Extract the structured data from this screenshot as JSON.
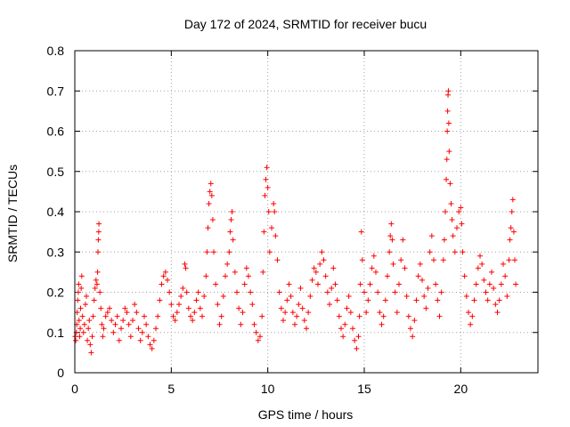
{
  "chart_data": {
    "type": "scatter",
    "title": "Day 172 of 2024, SRMTID for receiver bucu",
    "xlabel": "GPS time / hours",
    "ylabel": "SRMTID / TECUs",
    "xlim": [
      0,
      24
    ],
    "ylim": [
      0,
      0.8
    ],
    "xticks": [
      0,
      5,
      10,
      15,
      20
    ],
    "xtick_labels": [
      "0",
      "5",
      "10",
      "15",
      "20"
    ],
    "yticks": [
      0,
      0.1,
      0.2,
      0.3,
      0.4,
      0.5,
      0.6,
      0.7,
      0.8
    ],
    "ytick_labels": [
      "0",
      "0.1",
      "0.2",
      "0.3",
      "0.4",
      "0.5",
      "0.6",
      "0.7",
      "0.8"
    ],
    "grid": true,
    "marker": "plus",
    "colors": {
      "series": "#ff0000",
      "grid": "#a0a0a0",
      "axis": "#000000"
    },
    "series": [
      {
        "name": "SRMTID",
        "points": [
          [
            0.02,
            0.09
          ],
          [
            0.05,
            0.08
          ],
          [
            0.08,
            0.1
          ],
          [
            0.1,
            0.12
          ],
          [
            0.12,
            0.15
          ],
          [
            0.15,
            0.18
          ],
          [
            0.18,
            0.2
          ],
          [
            0.2,
            0.22
          ],
          [
            0.22,
            0.13
          ],
          [
            0.25,
            0.09
          ],
          [
            0.28,
            0.11
          ],
          [
            0.3,
            0.16
          ],
          [
            0.33,
            0.21
          ],
          [
            0.36,
            0.24
          ],
          [
            0.4,
            0.14
          ],
          [
            0.45,
            0.1
          ],
          [
            0.5,
            0.12
          ],
          [
            0.55,
            0.17
          ],
          [
            0.6,
            0.19
          ],
          [
            0.65,
            0.08
          ],
          [
            0.7,
            0.11
          ],
          [
            0.75,
            0.13
          ],
          [
            0.8,
            0.07
          ],
          [
            0.85,
            0.05
          ],
          [
            0.9,
            0.09
          ],
          [
            0.95,
            0.14
          ],
          [
            1.0,
            0.18
          ],
          [
            1.05,
            0.21
          ],
          [
            1.1,
            0.23
          ],
          [
            1.15,
            0.22
          ],
          [
            1.18,
            0.25
          ],
          [
            1.2,
            0.3
          ],
          [
            1.22,
            0.33
          ],
          [
            1.24,
            0.35
          ],
          [
            1.25,
            0.37
          ],
          [
            1.3,
            0.2
          ],
          [
            1.35,
            0.16
          ],
          [
            1.4,
            0.12
          ],
          [
            1.45,
            0.09
          ],
          [
            1.5,
            0.11
          ],
          [
            1.6,
            0.14
          ],
          [
            1.7,
            0.15
          ],
          [
            1.8,
            0.16
          ],
          [
            1.9,
            0.13
          ],
          [
            2.0,
            0.1
          ],
          [
            2.1,
            0.12
          ],
          [
            2.2,
            0.14
          ],
          [
            2.3,
            0.08
          ],
          [
            2.4,
            0.11
          ],
          [
            2.5,
            0.13
          ],
          [
            2.6,
            0.16
          ],
          [
            2.7,
            0.15
          ],
          [
            2.8,
            0.12
          ],
          [
            2.9,
            0.09
          ],
          [
            3.0,
            0.13
          ],
          [
            3.1,
            0.17
          ],
          [
            3.2,
            0.15
          ],
          [
            3.3,
            0.11
          ],
          [
            3.4,
            0.08
          ],
          [
            3.5,
            0.1
          ],
          [
            3.6,
            0.14
          ],
          [
            3.7,
            0.12
          ],
          [
            3.8,
            0.09
          ],
          [
            3.9,
            0.07
          ],
          [
            4.0,
            0.06
          ],
          [
            4.1,
            0.08
          ],
          [
            4.2,
            0.11
          ],
          [
            4.3,
            0.14
          ],
          [
            4.4,
            0.18
          ],
          [
            4.5,
            0.22
          ],
          [
            4.6,
            0.24
          ],
          [
            4.7,
            0.25
          ],
          [
            4.8,
            0.23
          ],
          [
            4.9,
            0.2
          ],
          [
            5.0,
            0.17
          ],
          [
            5.1,
            0.14
          ],
          [
            5.2,
            0.13
          ],
          [
            5.3,
            0.15
          ],
          [
            5.4,
            0.17
          ],
          [
            5.5,
            0.19
          ],
          [
            5.6,
            0.21
          ],
          [
            5.7,
            0.27
          ],
          [
            5.75,
            0.26
          ],
          [
            5.8,
            0.2
          ],
          [
            5.9,
            0.16
          ],
          [
            6.0,
            0.14
          ],
          [
            6.1,
            0.13
          ],
          [
            6.2,
            0.15
          ],
          [
            6.3,
            0.18
          ],
          [
            6.4,
            0.2
          ],
          [
            6.5,
            0.16
          ],
          [
            6.6,
            0.14
          ],
          [
            6.7,
            0.19
          ],
          [
            6.8,
            0.24
          ],
          [
            6.85,
            0.3
          ],
          [
            6.9,
            0.36
          ],
          [
            6.95,
            0.42
          ],
          [
            7.0,
            0.45
          ],
          [
            7.05,
            0.47
          ],
          [
            7.1,
            0.44
          ],
          [
            7.15,
            0.38
          ],
          [
            7.2,
            0.3
          ],
          [
            7.3,
            0.22
          ],
          [
            7.4,
            0.17
          ],
          [
            7.5,
            0.12
          ],
          [
            7.6,
            0.14
          ],
          [
            7.7,
            0.19
          ],
          [
            7.8,
            0.24
          ],
          [
            7.9,
            0.27
          ],
          [
            8.0,
            0.3
          ],
          [
            8.05,
            0.35
          ],
          [
            8.1,
            0.38
          ],
          [
            8.15,
            0.4
          ],
          [
            8.2,
            0.33
          ],
          [
            8.3,
            0.25
          ],
          [
            8.4,
            0.2
          ],
          [
            8.5,
            0.16
          ],
          [
            8.6,
            0.12
          ],
          [
            8.7,
            0.15
          ],
          [
            8.8,
            0.22
          ],
          [
            8.9,
            0.26
          ],
          [
            9.0,
            0.24
          ],
          [
            9.1,
            0.2
          ],
          [
            9.2,
            0.17
          ],
          [
            9.3,
            0.12
          ],
          [
            9.4,
            0.1
          ],
          [
            9.5,
            0.08
          ],
          [
            9.6,
            0.09
          ],
          [
            9.7,
            0.14
          ],
          [
            9.75,
            0.25
          ],
          [
            9.8,
            0.35
          ],
          [
            9.85,
            0.44
          ],
          [
            9.9,
            0.48
          ],
          [
            9.95,
            0.51
          ],
          [
            10.0,
            0.46
          ],
          [
            10.05,
            0.4
          ],
          [
            10.1,
            0.3
          ],
          [
            10.2,
            0.36
          ],
          [
            10.3,
            0.42
          ],
          [
            10.35,
            0.4
          ],
          [
            10.4,
            0.34
          ],
          [
            10.5,
            0.28
          ],
          [
            10.6,
            0.2
          ],
          [
            10.7,
            0.16
          ],
          [
            10.8,
            0.13
          ],
          [
            10.9,
            0.15
          ],
          [
            11.0,
            0.18
          ],
          [
            11.1,
            0.22
          ],
          [
            11.2,
            0.19
          ],
          [
            11.3,
            0.15
          ],
          [
            11.4,
            0.12
          ],
          [
            11.5,
            0.14
          ],
          [
            11.6,
            0.17
          ],
          [
            11.7,
            0.21
          ],
          [
            11.8,
            0.16
          ],
          [
            11.9,
            0.13
          ],
          [
            12.0,
            0.11
          ],
          [
            12.1,
            0.15
          ],
          [
            12.2,
            0.19
          ],
          [
            12.3,
            0.23
          ],
          [
            12.4,
            0.26
          ],
          [
            12.5,
            0.25
          ],
          [
            12.6,
            0.22
          ],
          [
            12.7,
            0.27
          ],
          [
            12.8,
            0.3
          ],
          [
            12.9,
            0.28
          ],
          [
            13.0,
            0.24
          ],
          [
            13.1,
            0.2
          ],
          [
            13.2,
            0.17
          ],
          [
            13.3,
            0.21
          ],
          [
            13.4,
            0.26
          ],
          [
            13.5,
            0.22
          ],
          [
            13.6,
            0.18
          ],
          [
            13.7,
            0.14
          ],
          [
            13.8,
            0.11
          ],
          [
            13.9,
            0.09
          ],
          [
            14.0,
            0.12
          ],
          [
            14.1,
            0.16
          ],
          [
            14.2,
            0.19
          ],
          [
            14.3,
            0.15
          ],
          [
            14.4,
            0.11
          ],
          [
            14.5,
            0.08
          ],
          [
            14.6,
            0.06
          ],
          [
            14.7,
            0.09
          ],
          [
            14.75,
            0.14
          ],
          [
            14.8,
            0.22
          ],
          [
            14.85,
            0.35
          ],
          [
            14.9,
            0.28
          ],
          [
            15.0,
            0.2
          ],
          [
            15.1,
            0.15
          ],
          [
            15.2,
            0.18
          ],
          [
            15.3,
            0.22
          ],
          [
            15.4,
            0.26
          ],
          [
            15.5,
            0.29
          ],
          [
            15.6,
            0.25
          ],
          [
            15.7,
            0.2
          ],
          [
            15.8,
            0.15
          ],
          [
            15.9,
            0.12
          ],
          [
            16.0,
            0.14
          ],
          [
            16.1,
            0.18
          ],
          [
            16.2,
            0.24
          ],
          [
            16.3,
            0.3
          ],
          [
            16.35,
            0.34
          ],
          [
            16.4,
            0.37
          ],
          [
            16.45,
            0.33
          ],
          [
            16.5,
            0.27
          ],
          [
            16.6,
            0.2
          ],
          [
            16.7,
            0.15
          ],
          [
            16.8,
            0.22
          ],
          [
            16.9,
            0.28
          ],
          [
            17.0,
            0.33
          ],
          [
            17.1,
            0.26
          ],
          [
            17.2,
            0.19
          ],
          [
            17.3,
            0.14
          ],
          [
            17.4,
            0.11
          ],
          [
            17.5,
            0.09
          ],
          [
            17.6,
            0.13
          ],
          [
            17.7,
            0.18
          ],
          [
            17.8,
            0.24
          ],
          [
            17.9,
            0.27
          ],
          [
            18.0,
            0.23
          ],
          [
            18.1,
            0.19
          ],
          [
            18.2,
            0.16
          ],
          [
            18.3,
            0.21
          ],
          [
            18.4,
            0.3
          ],
          [
            18.5,
            0.34
          ],
          [
            18.6,
            0.28
          ],
          [
            18.7,
            0.22
          ],
          [
            18.8,
            0.18
          ],
          [
            18.9,
            0.14
          ],
          [
            19.0,
            0.2
          ],
          [
            19.1,
            0.28
          ],
          [
            19.15,
            0.33
          ],
          [
            19.2,
            0.4
          ],
          [
            19.25,
            0.48
          ],
          [
            19.28,
            0.53
          ],
          [
            19.3,
            0.6
          ],
          [
            19.32,
            0.65
          ],
          [
            19.34,
            0.69
          ],
          [
            19.36,
            0.7
          ],
          [
            19.38,
            0.62
          ],
          [
            19.4,
            0.55
          ],
          [
            19.45,
            0.47
          ],
          [
            19.5,
            0.42
          ],
          [
            19.55,
            0.38
          ],
          [
            19.6,
            0.34
          ],
          [
            19.7,
            0.3
          ],
          [
            19.8,
            0.36
          ],
          [
            19.9,
            0.4
          ],
          [
            20.0,
            0.41
          ],
          [
            20.05,
            0.37
          ],
          [
            20.1,
            0.3
          ],
          [
            20.2,
            0.24
          ],
          [
            20.3,
            0.19
          ],
          [
            20.4,
            0.15
          ],
          [
            20.5,
            0.12
          ],
          [
            20.6,
            0.14
          ],
          [
            20.7,
            0.18
          ],
          [
            20.8,
            0.22
          ],
          [
            20.9,
            0.26
          ],
          [
            21.0,
            0.29
          ],
          [
            21.1,
            0.27
          ],
          [
            21.2,
            0.23
          ],
          [
            21.3,
            0.2
          ],
          [
            21.4,
            0.18
          ],
          [
            21.5,
            0.22
          ],
          [
            21.6,
            0.25
          ],
          [
            21.7,
            0.21
          ],
          [
            21.8,
            0.17
          ],
          [
            21.9,
            0.15
          ],
          [
            22.0,
            0.18
          ],
          [
            22.1,
            0.22
          ],
          [
            22.2,
            0.27
          ],
          [
            22.3,
            0.24
          ],
          [
            22.4,
            0.19
          ],
          [
            22.5,
            0.28
          ],
          [
            22.55,
            0.33
          ],
          [
            22.6,
            0.36
          ],
          [
            22.65,
            0.4
          ],
          [
            22.7,
            0.43
          ],
          [
            22.75,
            0.35
          ],
          [
            22.8,
            0.28
          ],
          [
            22.85,
            0.22
          ]
        ]
      }
    ]
  }
}
